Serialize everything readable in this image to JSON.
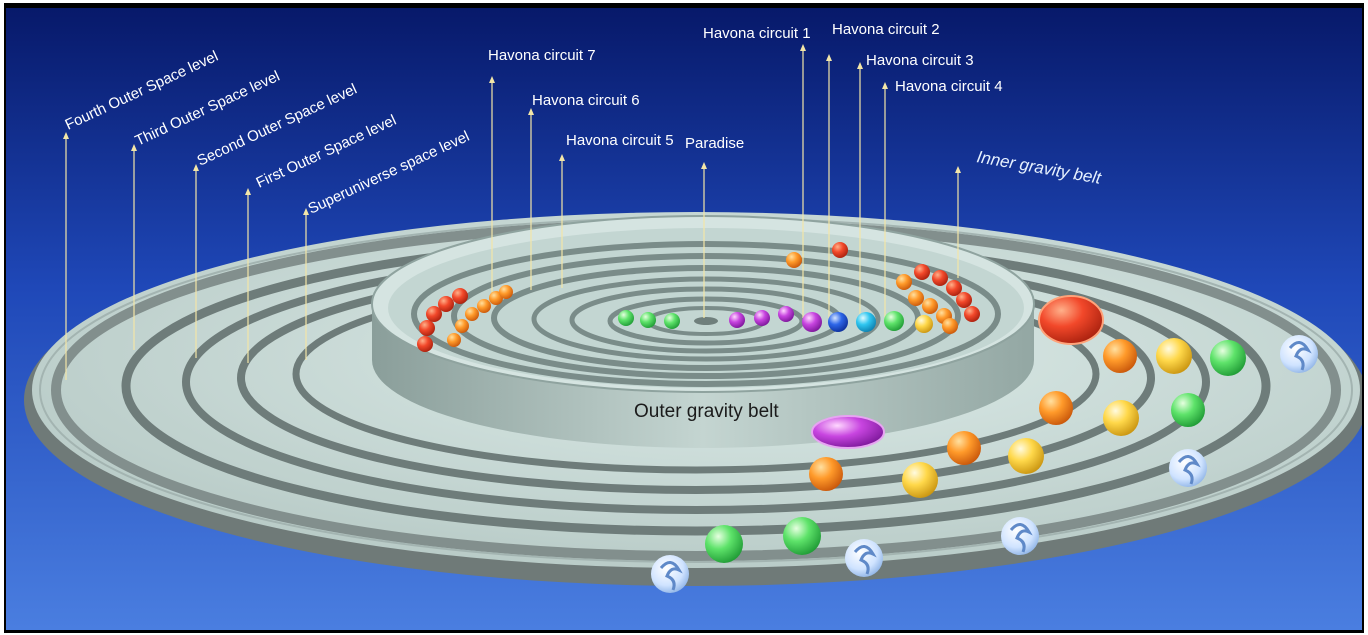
{
  "labels": {
    "fourth_outer": "Fourth Outer Space level",
    "third_outer": "Third Outer Space level",
    "second_outer": "Second Outer Space level",
    "first_outer": "First Outer Space level",
    "superuniverse": "Superuniverse space level",
    "havona_7": "Havona circuit 7",
    "havona_6": "Havona circuit 6",
    "havona_5": "Havona circuit 5",
    "paradise": "Paradise",
    "havona_1": "Havona circuit 1",
    "havona_2": "Havona circuit 2",
    "havona_3": "Havona circuit 3",
    "havona_4": "Havona circuit 4",
    "inner_belt": "Inner gravity belt",
    "outer_belt": "Outer gravity belt"
  },
  "colors": {
    "sky_top": "#08206e",
    "sky_bottom": "#3f6fd8",
    "disc": "#c9dcd8",
    "disc_rim": "#6b7573",
    "wall": "#a9bcb8",
    "pointer": "#f3e6a8"
  }
}
